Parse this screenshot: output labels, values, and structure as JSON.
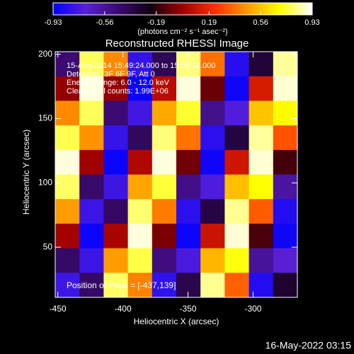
{
  "chart_data": {
    "type": "heatmap",
    "title": "Reconstructed RHESSI Image",
    "x_label": "Heliocentric X (arcsec)",
    "y_label": "Heliocentric Y (arcsec)",
    "xlim": [
      -452,
      -266
    ],
    "ylim": [
      11,
      202
    ],
    "xticks": [
      -450,
      -400,
      -350,
      -300
    ],
    "yticks": [
      50,
      100,
      150,
      200
    ],
    "colorbar": {
      "label": "(photons cm⁻² s⁻¹ asec⁻²)",
      "lim": [
        -0.93,
        0.93
      ],
      "ticks": [
        -0.93,
        -0.56,
        -0.19,
        0.19,
        0.56,
        0.93
      ]
    },
    "colormap": [
      "#0000ff",
      "#5a20d8",
      "#3a0a70",
      "#100010",
      "#a00000",
      "#ff3000",
      "#ff9a00",
      "#ffff00",
      "#ffffff"
    ],
    "annotations": [
      "15-Aug-2014 15:49:24.000 to 15:55:24.000",
      "Detectors: 3F 6F 9F, Att 0",
      "Energy Range: 6.0 - 12.0 keV",
      "Clean    Total counts: 1.99E+06"
    ],
    "peak_label": "Position of Peak = [-437,139]",
    "footer": "16-May-2022 03:15",
    "z": [
      [
        -0.47,
        0.78,
        0.43,
        -0.8,
        -0.4,
        0.81,
        0.37,
        -0.83,
        -0.33,
        0.84
      ],
      [
        -0.02,
        0.9,
        -0.02,
        -0.9,
        0.06,
        0.9,
        -0.09,
        -0.89,
        0.13,
        0.89
      ],
      [
        0.43,
        0.78,
        -0.47,
        -0.76,
        0.5,
        0.74,
        -0.53,
        -0.72,
        0.56,
        0.69
      ],
      [
        0.77,
        0.45,
        -0.79,
        -0.42,
        0.81,
        0.38,
        -0.82,
        -0.35,
        0.84,
        0.31
      ],
      [
        0.9,
        0.0,
        -0.9,
        0.04,
        0.9,
        -0.08,
        -0.89,
        0.11,
        0.89,
        -0.15
      ],
      [
        0.79,
        -0.45,
        -0.77,
        0.49,
        0.75,
        -0.52,
        -0.73,
        0.55,
        0.7,
        -0.58
      ],
      [
        0.47,
        -0.78,
        -0.43,
        0.8,
        0.4,
        -0.82,
        -0.36,
        0.83,
        0.33,
        -0.84
      ],
      [
        0.01,
        -0.9,
        0.02,
        0.9,
        -0.06,
        -0.9,
        0.1,
        0.89,
        -0.14,
        -0.89
      ],
      [
        -0.44,
        -0.78,
        0.47,
        0.76,
        -0.5,
        -0.74,
        0.53,
        0.71,
        -0.56,
        -0.69
      ],
      [
        -0.77,
        -0.44,
        0.79,
        0.41,
        -0.81,
        -0.38,
        0.83,
        0.34,
        -0.84,
        -0.31
      ]
    ]
  }
}
